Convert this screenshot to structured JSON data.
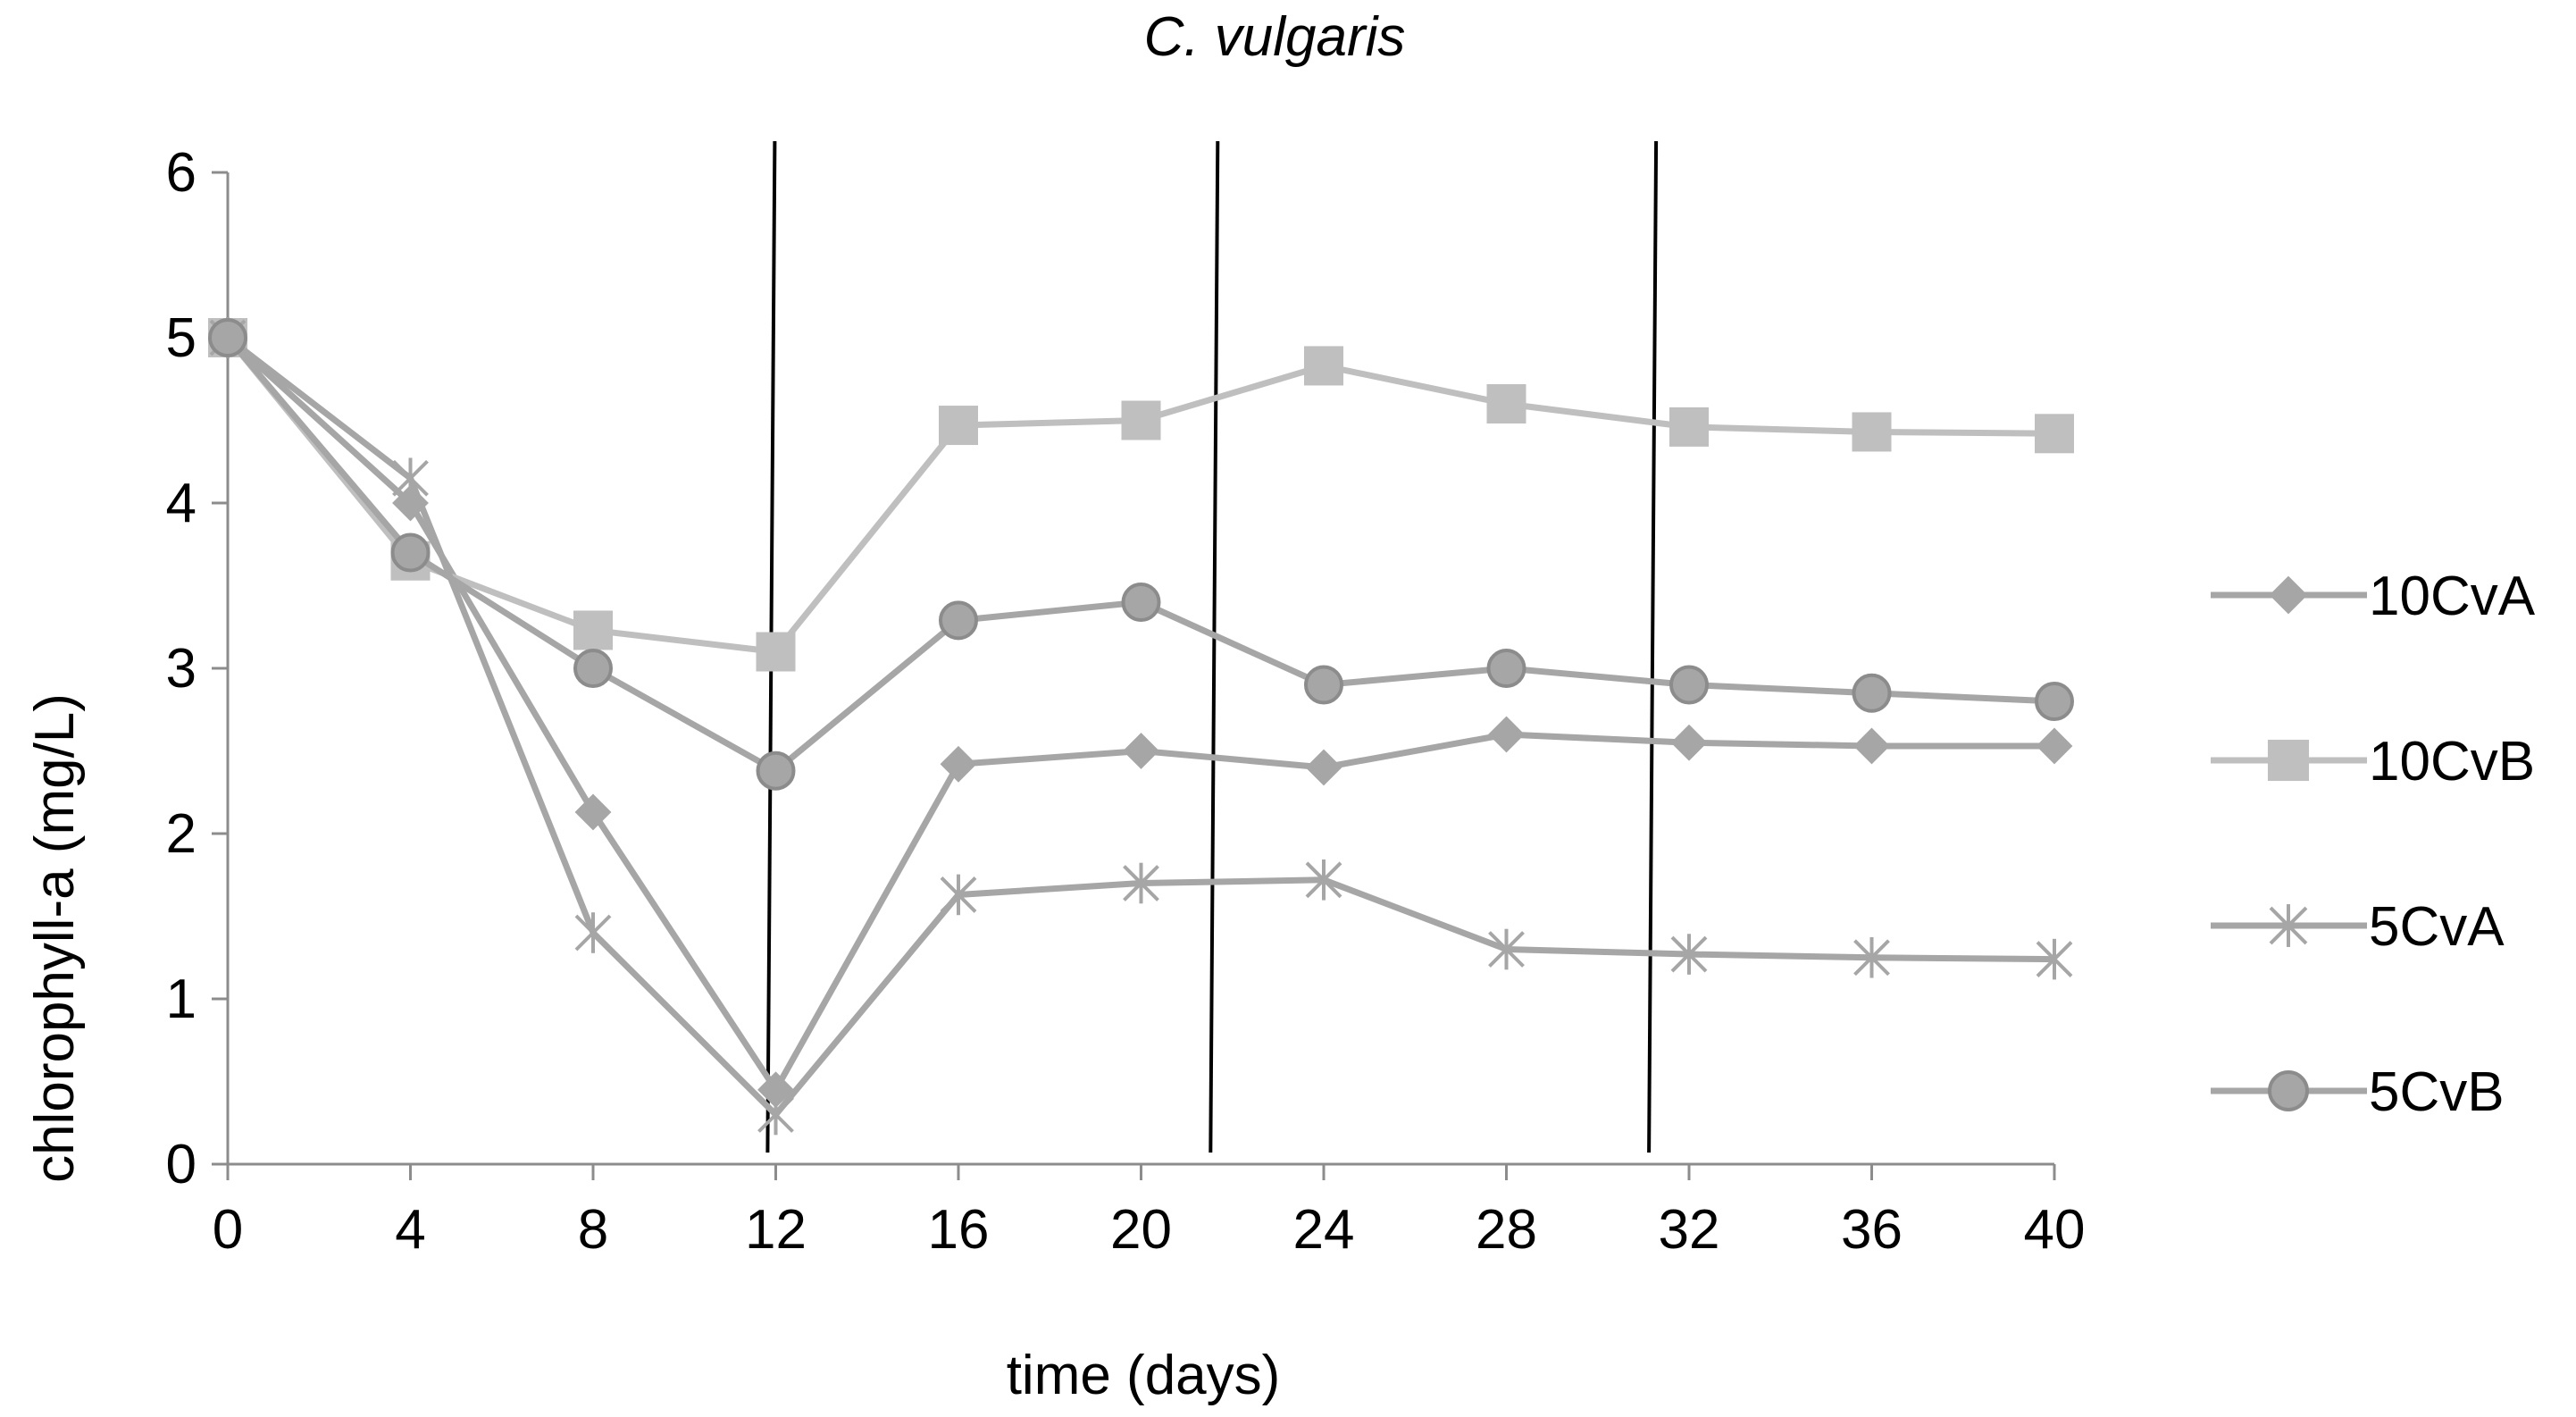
{
  "chart_data": {
    "type": "line",
    "title": "C. vulgaris",
    "xlabel": "time (days)",
    "ylabel": "chlorophyll-a (mg/L)",
    "x": [
      0,
      4,
      8,
      12,
      16,
      20,
      24,
      28,
      32,
      36,
      40
    ],
    "xticks": [
      "0",
      "4",
      "8",
      "12",
      "16",
      "20",
      "24",
      "28",
      "32",
      "36",
      "40"
    ],
    "yticks": [
      "0",
      "1",
      "2",
      "3",
      "4",
      "5",
      "6"
    ],
    "xlim": [
      0,
      40
    ],
    "ylim": [
      0,
      6
    ],
    "grid": false,
    "legend_position": "right",
    "vertical_lines_x": [
      11.9,
      21.6,
      31.2
    ],
    "series": [
      {
        "name": "10CvA",
        "marker": "diamond",
        "color": "#a6a6a6",
        "values": [
          5.0,
          4.0,
          2.13,
          0.45,
          2.42,
          2.5,
          2.4,
          2.6,
          2.55,
          2.53,
          2.53
        ]
      },
      {
        "name": "10CvB",
        "marker": "square",
        "color": "#bfbfbf",
        "values": [
          5.0,
          3.65,
          3.23,
          3.1,
          4.47,
          4.5,
          4.83,
          4.6,
          4.46,
          4.43,
          4.42
        ]
      },
      {
        "name": "5CvA",
        "marker": "star",
        "color": "#a6a6a6",
        "values": [
          5.0,
          4.15,
          1.4,
          0.3,
          1.63,
          1.7,
          1.72,
          1.3,
          1.27,
          1.25,
          1.24
        ]
      },
      {
        "name": "5CvB",
        "marker": "circle",
        "color": "#a6a6a6",
        "values": [
          5.0,
          3.7,
          3.0,
          2.38,
          3.29,
          3.4,
          2.9,
          3.0,
          2.9,
          2.85,
          2.8
        ]
      }
    ]
  }
}
